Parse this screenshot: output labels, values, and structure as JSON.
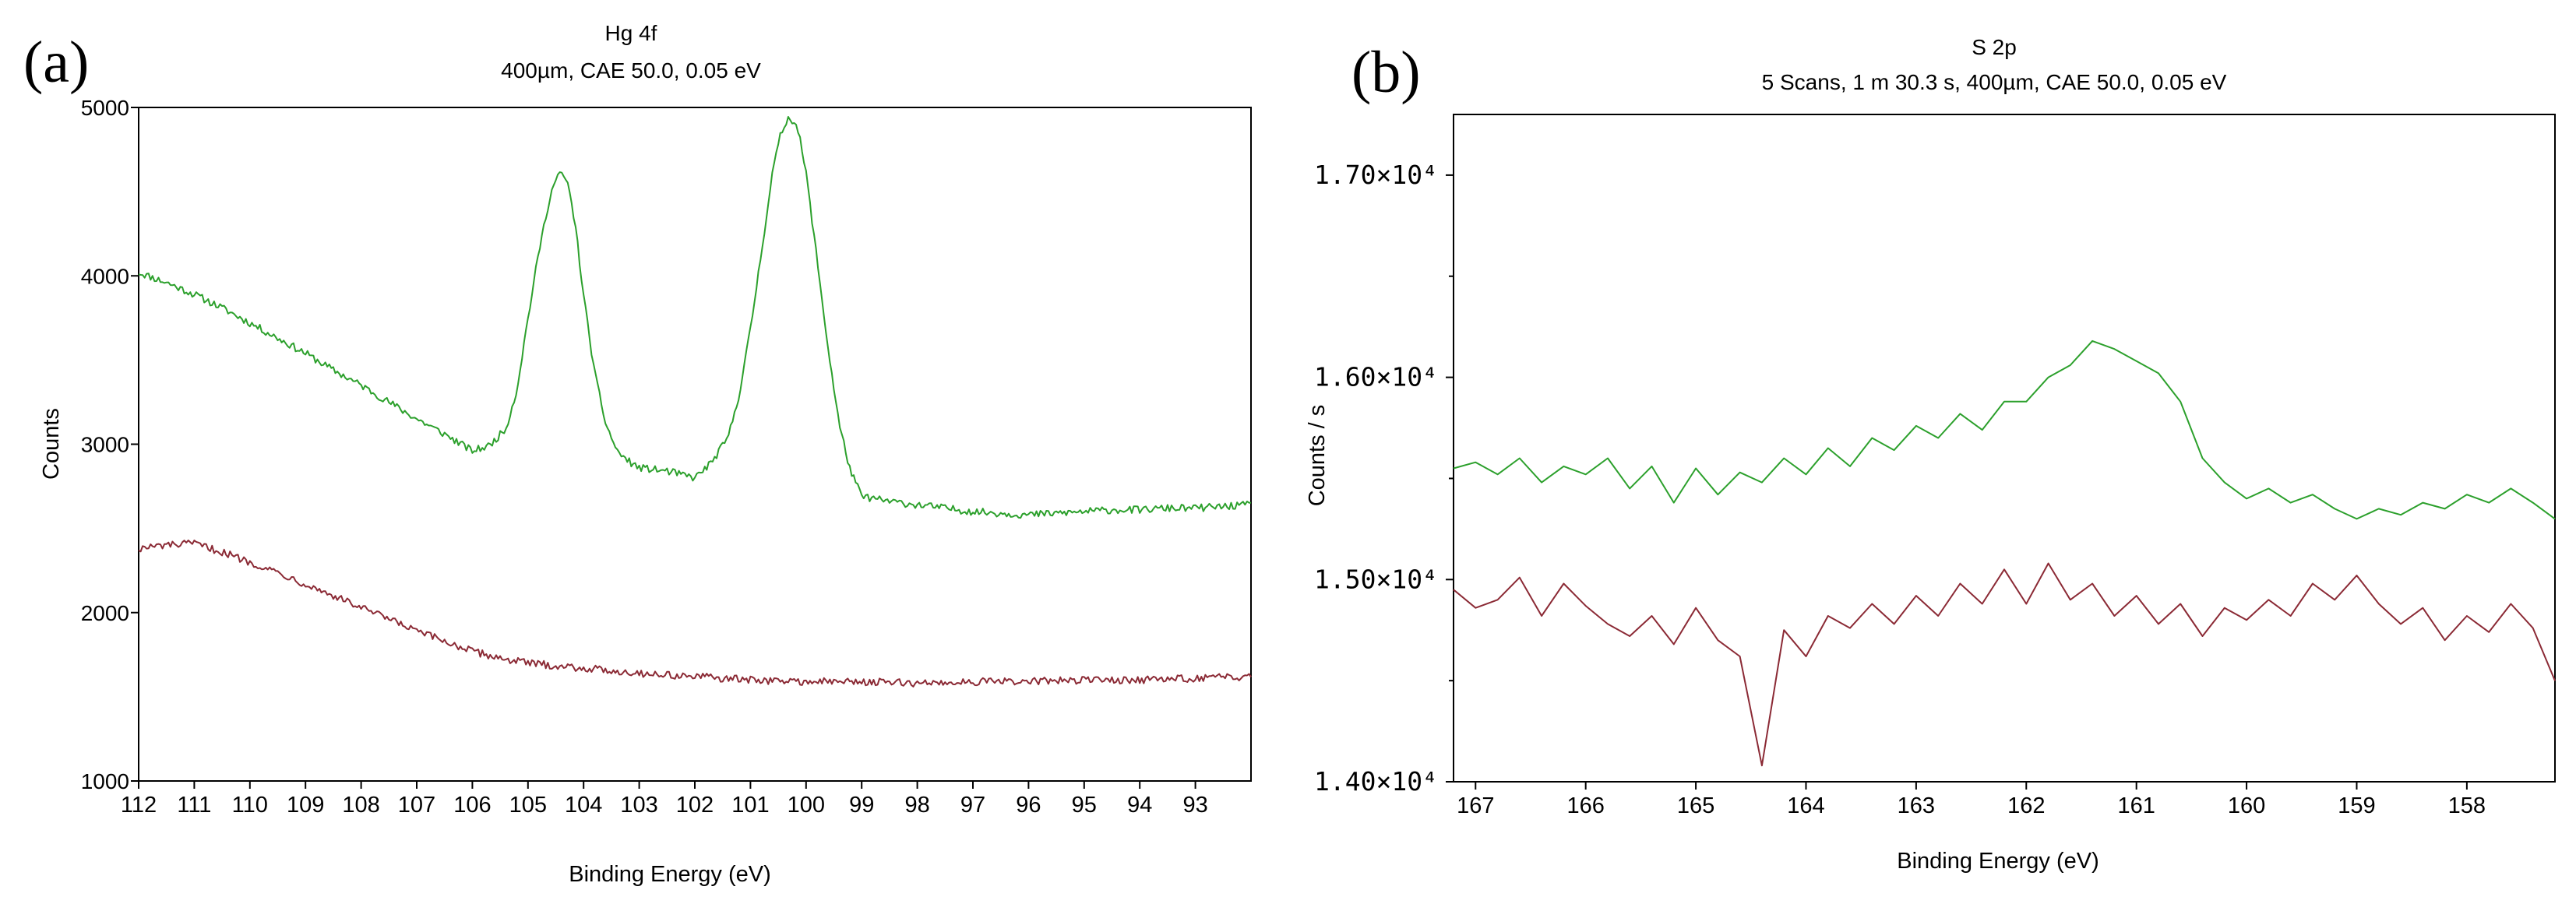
{
  "chart_data": [
    {
      "panel": "(a)",
      "type": "line",
      "title": "Hg 4f",
      "subtitle": "400µm,  CAE 50.0,  0.05 eV",
      "xlabel": "Binding Energy (eV)",
      "ylabel": "Counts",
      "xlim": [
        112,
        92
      ],
      "ylim": [
        1000,
        5000
      ],
      "x_ticks": [
        112,
        111,
        110,
        109,
        108,
        107,
        106,
        105,
        104,
        103,
        102,
        101,
        100,
        99,
        98,
        97,
        96,
        95,
        94,
        93
      ],
      "y_ticks": [
        1000,
        2000,
        3000,
        4000,
        5000
      ],
      "y_tick_labels": [
        "1000",
        "2000",
        "3000",
        "4000",
        "5000"
      ],
      "grid": false,
      "series": [
        {
          "name": "green",
          "color": "#2ca02c",
          "x": [
            112.0,
            111.5,
            111.0,
            110.5,
            110.0,
            109.5,
            109.0,
            108.5,
            108.0,
            107.5,
            107.0,
            106.5,
            106.0,
            105.7,
            105.4,
            105.2,
            105.0,
            104.8,
            104.6,
            104.45,
            104.3,
            104.15,
            104.0,
            103.8,
            103.6,
            103.4,
            103.2,
            103.0,
            102.5,
            102.0,
            101.7,
            101.4,
            101.2,
            101.0,
            100.8,
            100.6,
            100.45,
            100.3,
            100.15,
            100.0,
            99.8,
            99.6,
            99.4,
            99.2,
            99.0,
            98.5,
            98.0,
            97.5,
            97.0,
            96.5,
            96.0,
            95.5,
            95.0,
            94.5,
            94.0,
            93.5,
            93.0,
            92.5,
            92.0
          ],
          "values": [
            4020,
            3960,
            3890,
            3810,
            3720,
            3630,
            3540,
            3440,
            3350,
            3250,
            3150,
            3060,
            2960,
            2990,
            3090,
            3320,
            3750,
            4150,
            4480,
            4610,
            4570,
            4310,
            3880,
            3420,
            3120,
            2960,
            2900,
            2860,
            2840,
            2800,
            2890,
            3040,
            3300,
            3680,
            4150,
            4620,
            4850,
            4950,
            4880,
            4610,
            4090,
            3560,
            3110,
            2840,
            2690,
            2660,
            2640,
            2620,
            2600,
            2590,
            2580,
            2590,
            2600,
            2610,
            2610,
            2620,
            2620,
            2630,
            2640
          ]
        },
        {
          "name": "red",
          "color": "#8b2a35",
          "x": [
            112.0,
            111.5,
            111.0,
            110.5,
            110.0,
            109.5,
            109.0,
            108.5,
            108.0,
            107.5,
            107.0,
            106.5,
            106.0,
            105.5,
            105.0,
            104.0,
            103.0,
            102.0,
            101.0,
            100.0,
            99.0,
            98.0,
            97.0,
            96.0,
            95.0,
            94.0,
            93.0,
            92.0
          ],
          "values": [
            2380,
            2400,
            2410,
            2360,
            2300,
            2240,
            2170,
            2100,
            2030,
            1960,
            1890,
            1830,
            1770,
            1730,
            1700,
            1670,
            1640,
            1620,
            1600,
            1590,
            1590,
            1580,
            1590,
            1590,
            1600,
            1600,
            1610,
            1620
          ]
        }
      ]
    },
    {
      "panel": "(b)",
      "type": "line",
      "title": "S 2p",
      "subtitle": "5 Scans,  1 m 30.3 s,  400µm,  CAE 50.0,  0.05 eV",
      "xlabel": "Binding Energy (eV)",
      "ylabel": "Counts / s",
      "xlim": [
        167.2,
        157.2
      ],
      "ylim": [
        14000,
        17300
      ],
      "x_ticks": [
        167,
        166,
        165,
        164,
        163,
        162,
        161,
        160,
        159,
        158
      ],
      "y_ticks": [
        14000,
        15000,
        16000,
        17000
      ],
      "y_tick_labels": [
        "1.40×10⁴",
        "1.50×10⁴",
        "1.60×10⁴",
        "1.70×10⁴"
      ],
      "y_minor_ticks": [
        14500,
        15500,
        16500
      ],
      "grid": false,
      "series": [
        {
          "name": "green",
          "color": "#2ca02c",
          "x": [
            167.2,
            167.0,
            166.8,
            166.6,
            166.4,
            166.2,
            166.0,
            165.8,
            165.6,
            165.4,
            165.2,
            165.0,
            164.8,
            164.6,
            164.4,
            164.2,
            164.0,
            163.8,
            163.6,
            163.4,
            163.2,
            163.0,
            162.8,
            162.6,
            162.4,
            162.2,
            162.0,
            161.8,
            161.6,
            161.4,
            161.2,
            161.0,
            160.8,
            160.6,
            160.4,
            160.2,
            160.0,
            159.8,
            159.6,
            159.4,
            159.2,
            159.0,
            158.8,
            158.6,
            158.4,
            158.2,
            158.0,
            157.8,
            157.6,
            157.4,
            157.2
          ],
          "values": [
            15550,
            15580,
            15520,
            15600,
            15480,
            15560,
            15520,
            15600,
            15450,
            15560,
            15380,
            15550,
            15420,
            15530,
            15480,
            15600,
            15520,
            15650,
            15560,
            15700,
            15640,
            15760,
            15700,
            15820,
            15740,
            15880,
            15880,
            16000,
            16060,
            16180,
            16140,
            16080,
            16020,
            15880,
            15600,
            15480,
            15400,
            15450,
            15380,
            15420,
            15350,
            15300,
            15350,
            15320,
            15380,
            15350,
            15420,
            15380,
            15450,
            15380,
            15300
          ]
        },
        {
          "name": "red",
          "color": "#8b2a35",
          "x": [
            167.2,
            167.0,
            166.8,
            166.6,
            166.4,
            166.2,
            166.0,
            165.8,
            165.6,
            165.4,
            165.2,
            165.0,
            164.8,
            164.6,
            164.4,
            164.2,
            164.0,
            163.8,
            163.6,
            163.4,
            163.2,
            163.0,
            162.8,
            162.6,
            162.4,
            162.2,
            162.0,
            161.8,
            161.6,
            161.4,
            161.2,
            161.0,
            160.8,
            160.6,
            160.4,
            160.2,
            160.0,
            159.8,
            159.6,
            159.4,
            159.2,
            159.0,
            158.8,
            158.6,
            158.4,
            158.2,
            158.0,
            157.8,
            157.6,
            157.4,
            157.2
          ],
          "values": [
            14950,
            14860,
            14900,
            15010,
            14820,
            14980,
            14870,
            14780,
            14720,
            14820,
            14680,
            14860,
            14700,
            14620,
            14080,
            14750,
            14620,
            14820,
            14760,
            14880,
            14780,
            14920,
            14820,
            14980,
            14880,
            15050,
            14880,
            15080,
            14900,
            14980,
            14820,
            14920,
            14780,
            14880,
            14720,
            14860,
            14800,
            14900,
            14820,
            14980,
            14900,
            15020,
            14880,
            14780,
            14860,
            14700,
            14820,
            14740,
            14880,
            14760,
            14500
          ]
        }
      ]
    }
  ]
}
